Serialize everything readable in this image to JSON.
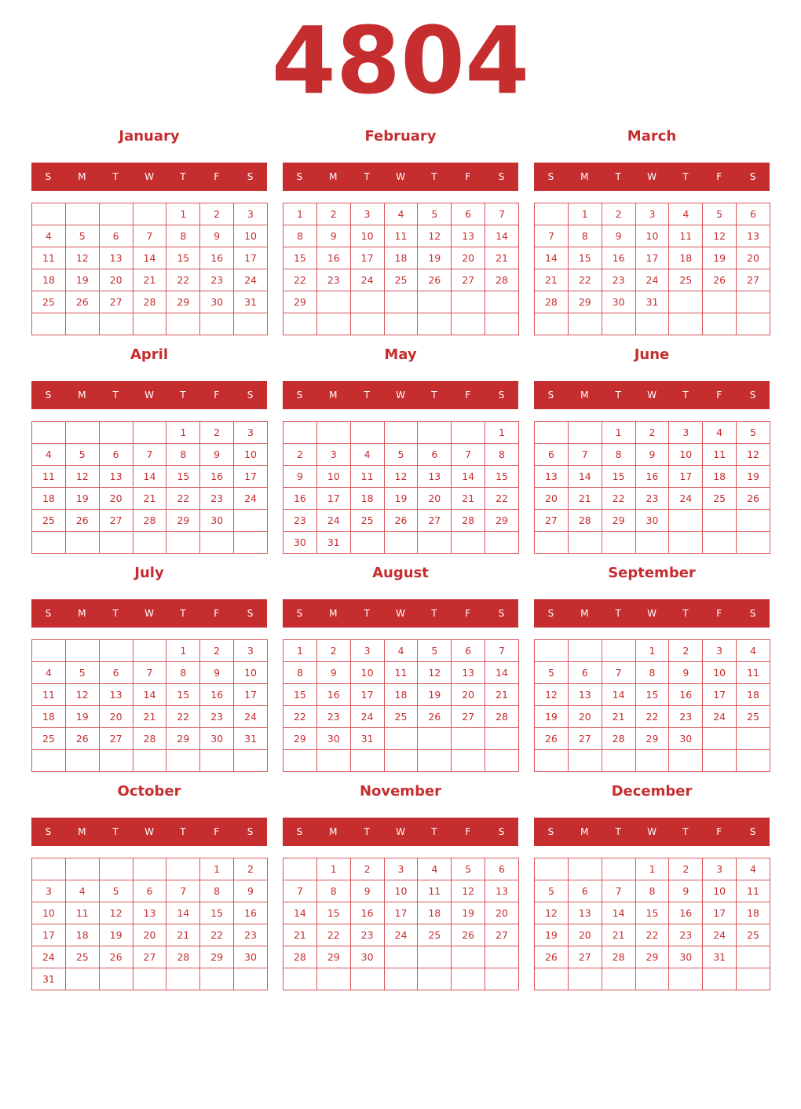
{
  "year": "4804",
  "accent_color": "#c62d2f",
  "weekdays": [
    "S",
    "M",
    "T",
    "W",
    "T",
    "F",
    "S"
  ],
  "months": [
    {
      "name": "January",
      "weeks": [
        [
          null,
          null,
          null,
          null,
          1,
          2,
          3
        ],
        [
          4,
          5,
          6,
          7,
          8,
          9,
          10
        ],
        [
          11,
          12,
          13,
          14,
          15,
          16,
          17
        ],
        [
          18,
          19,
          20,
          21,
          22,
          23,
          24
        ],
        [
          25,
          26,
          27,
          28,
          29,
          30,
          31
        ],
        [
          null,
          null,
          null,
          null,
          null,
          null,
          null
        ]
      ]
    },
    {
      "name": "February",
      "weeks": [
        [
          1,
          2,
          3,
          4,
          5,
          6,
          7
        ],
        [
          8,
          9,
          10,
          11,
          12,
          13,
          14
        ],
        [
          15,
          16,
          17,
          18,
          19,
          20,
          21
        ],
        [
          22,
          23,
          24,
          25,
          26,
          27,
          28
        ],
        [
          29,
          null,
          null,
          null,
          null,
          null,
          null
        ],
        [
          null,
          null,
          null,
          null,
          null,
          null,
          null
        ]
      ]
    },
    {
      "name": "March",
      "weeks": [
        [
          null,
          1,
          2,
          3,
          4,
          5,
          6
        ],
        [
          7,
          8,
          9,
          10,
          11,
          12,
          13
        ],
        [
          14,
          15,
          16,
          17,
          18,
          19,
          20
        ],
        [
          21,
          22,
          23,
          24,
          25,
          26,
          27
        ],
        [
          28,
          29,
          30,
          31,
          null,
          null,
          null
        ],
        [
          null,
          null,
          null,
          null,
          null,
          null,
          null
        ]
      ]
    },
    {
      "name": "April",
      "weeks": [
        [
          null,
          null,
          null,
          null,
          1,
          2,
          3
        ],
        [
          4,
          5,
          6,
          7,
          8,
          9,
          10
        ],
        [
          11,
          12,
          13,
          14,
          15,
          16,
          17
        ],
        [
          18,
          19,
          20,
          21,
          22,
          23,
          24
        ],
        [
          25,
          26,
          27,
          28,
          29,
          30,
          null
        ],
        [
          null,
          null,
          null,
          null,
          null,
          null,
          null
        ]
      ]
    },
    {
      "name": "May",
      "weeks": [
        [
          null,
          null,
          null,
          null,
          null,
          null,
          1
        ],
        [
          2,
          3,
          4,
          5,
          6,
          7,
          8
        ],
        [
          9,
          10,
          11,
          12,
          13,
          14,
          15
        ],
        [
          16,
          17,
          18,
          19,
          20,
          21,
          22
        ],
        [
          23,
          24,
          25,
          26,
          27,
          28,
          29
        ],
        [
          30,
          31,
          null,
          null,
          null,
          null,
          null
        ]
      ]
    },
    {
      "name": "June",
      "weeks": [
        [
          null,
          null,
          1,
          2,
          3,
          4,
          5
        ],
        [
          6,
          7,
          8,
          9,
          10,
          11,
          12
        ],
        [
          13,
          14,
          15,
          16,
          17,
          18,
          19
        ],
        [
          20,
          21,
          22,
          23,
          24,
          25,
          26
        ],
        [
          27,
          28,
          29,
          30,
          null,
          null,
          null
        ],
        [
          null,
          null,
          null,
          null,
          null,
          null,
          null
        ]
      ]
    },
    {
      "name": "July",
      "weeks": [
        [
          null,
          null,
          null,
          null,
          1,
          2,
          3
        ],
        [
          4,
          5,
          6,
          7,
          8,
          9,
          10
        ],
        [
          11,
          12,
          13,
          14,
          15,
          16,
          17
        ],
        [
          18,
          19,
          20,
          21,
          22,
          23,
          24
        ],
        [
          25,
          26,
          27,
          28,
          29,
          30,
          31
        ],
        [
          null,
          null,
          null,
          null,
          null,
          null,
          null
        ]
      ]
    },
    {
      "name": "August",
      "weeks": [
        [
          1,
          2,
          3,
          4,
          5,
          6,
          7
        ],
        [
          8,
          9,
          10,
          11,
          12,
          13,
          14
        ],
        [
          15,
          16,
          17,
          18,
          19,
          20,
          21
        ],
        [
          22,
          23,
          24,
          25,
          26,
          27,
          28
        ],
        [
          29,
          30,
          31,
          null,
          null,
          null,
          null
        ],
        [
          null,
          null,
          null,
          null,
          null,
          null,
          null
        ]
      ]
    },
    {
      "name": "September",
      "weeks": [
        [
          null,
          null,
          null,
          1,
          2,
          3,
          4
        ],
        [
          5,
          6,
          7,
          8,
          9,
          10,
          11
        ],
        [
          12,
          13,
          14,
          15,
          16,
          17,
          18
        ],
        [
          19,
          20,
          21,
          22,
          23,
          24,
          25
        ],
        [
          26,
          27,
          28,
          29,
          30,
          null,
          null
        ],
        [
          null,
          null,
          null,
          null,
          null,
          null,
          null
        ]
      ]
    },
    {
      "name": "October",
      "weeks": [
        [
          null,
          null,
          null,
          null,
          null,
          1,
          2
        ],
        [
          3,
          4,
          5,
          6,
          7,
          8,
          9
        ],
        [
          10,
          11,
          12,
          13,
          14,
          15,
          16
        ],
        [
          17,
          18,
          19,
          20,
          21,
          22,
          23
        ],
        [
          24,
          25,
          26,
          27,
          28,
          29,
          30
        ],
        [
          31,
          null,
          null,
          null,
          null,
          null,
          null
        ]
      ]
    },
    {
      "name": "November",
      "weeks": [
        [
          null,
          1,
          2,
          3,
          4,
          5,
          6
        ],
        [
          7,
          8,
          9,
          10,
          11,
          12,
          13
        ],
        [
          14,
          15,
          16,
          17,
          18,
          19,
          20
        ],
        [
          21,
          22,
          23,
          24,
          25,
          26,
          27
        ],
        [
          28,
          29,
          30,
          null,
          null,
          null,
          null
        ],
        [
          null,
          null,
          null,
          null,
          null,
          null,
          null
        ]
      ]
    },
    {
      "name": "December",
      "weeks": [
        [
          null,
          null,
          null,
          1,
          2,
          3,
          4
        ],
        [
          5,
          6,
          7,
          8,
          9,
          10,
          11
        ],
        [
          12,
          13,
          14,
          15,
          16,
          17,
          18
        ],
        [
          19,
          20,
          21,
          22,
          23,
          24,
          25
        ],
        [
          26,
          27,
          28,
          29,
          30,
          31,
          null
        ],
        [
          null,
          null,
          null,
          null,
          null,
          null,
          null
        ]
      ]
    }
  ]
}
